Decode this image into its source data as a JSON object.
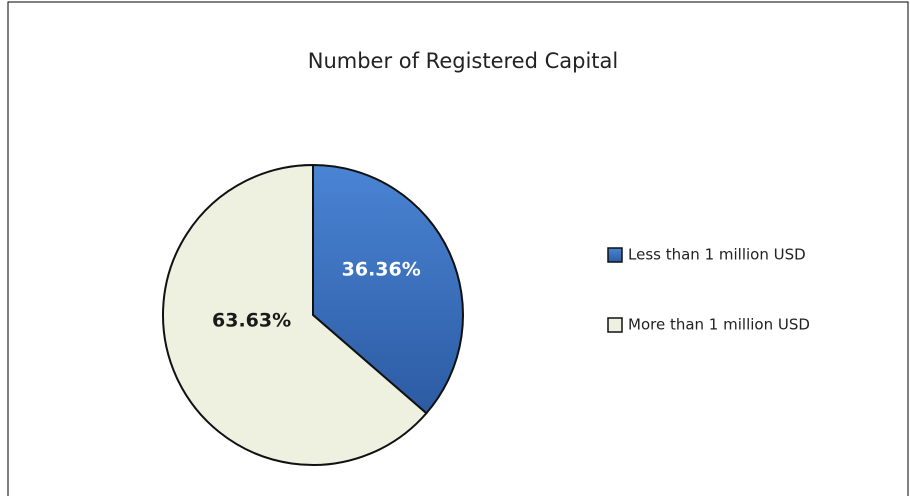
{
  "chart_data": {
    "type": "pie",
    "title": "Number of Registered Capital",
    "categories": [
      "Less than 1 million USD",
      "More than 1 million USD"
    ],
    "values": [
      36.36,
      63.63
    ],
    "value_labels": [
      "36.36%",
      "63.63%"
    ],
    "colors": [
      "#3d72c4",
      "#eef0e0"
    ],
    "label_colors": [
      "#ffffff",
      "#1a1a1a"
    ],
    "legend": "right"
  }
}
